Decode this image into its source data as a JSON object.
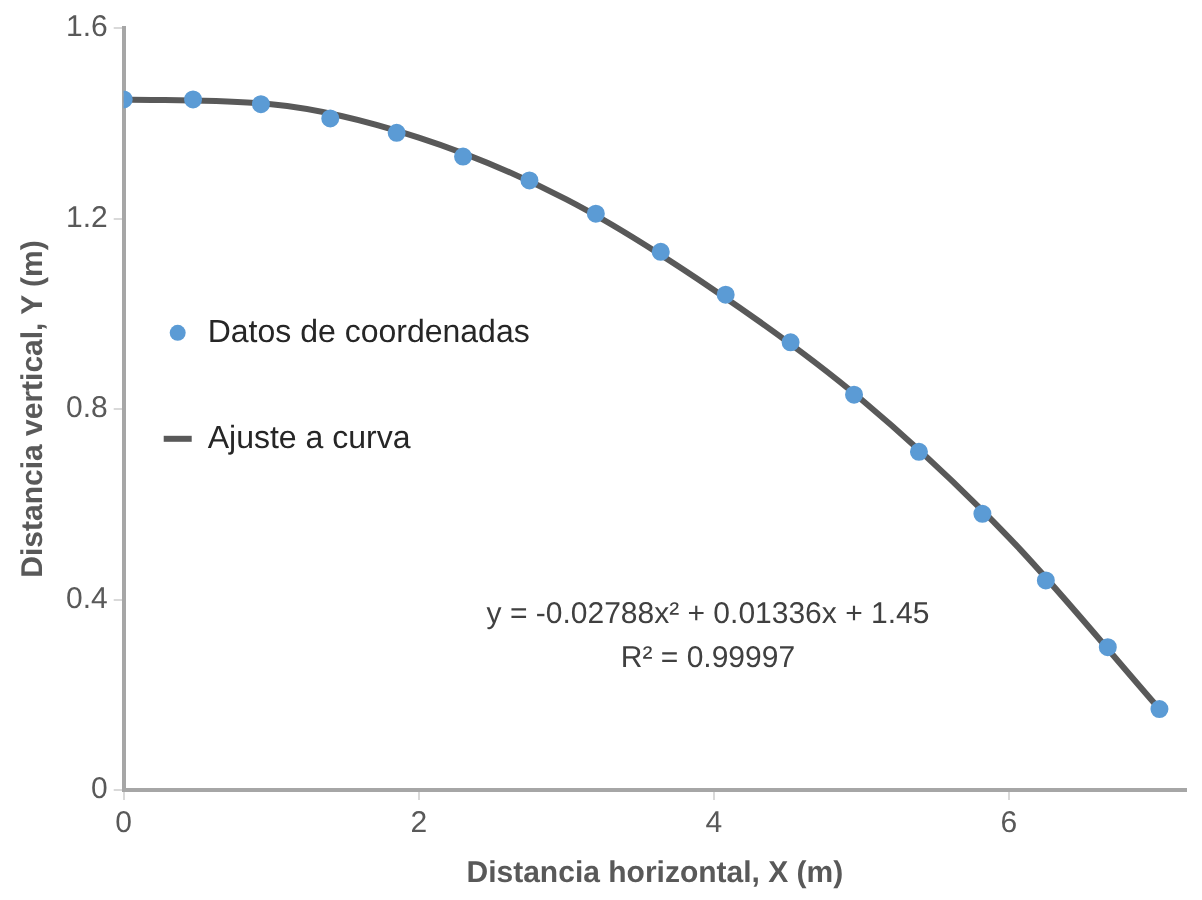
{
  "chart_data": {
    "type": "scatter",
    "xlabel": "Distancia horizontal, X (m)",
    "ylabel": "Distancia vertical, Y (m)",
    "xlim": [
      0,
      7.2
    ],
    "xticks": [
      0,
      2,
      4,
      6
    ],
    "ylim": [
      0,
      1.6
    ],
    "yticks": [
      0,
      0.4,
      0.8,
      1.2,
      1.6
    ],
    "grid": false,
    "legend": "left",
    "marker": "circle",
    "x": [
      0,
      0.47,
      0.93,
      1.4,
      1.85,
      2.3,
      2.75,
      3.2,
      3.64,
      4.08,
      4.52,
      4.95,
      5.39,
      5.82,
      6.25,
      6.67,
      7.02
    ],
    "series": [
      {
        "name": "Datos de coordenadas",
        "color": "#5b9bd5",
        "values": [
          1.45,
          1.45,
          1.44,
          1.41,
          1.38,
          1.33,
          1.28,
          1.21,
          1.13,
          1.04,
          0.94,
          0.83,
          0.71,
          0.58,
          0.44,
          0.3,
          0.17
        ]
      },
      {
        "name": "Ajuste a curva",
        "type": "line",
        "color": "#595959",
        "marker": "none",
        "x": [
          0,
          1,
          2,
          3,
          4,
          5,
          6,
          7.02
        ],
        "values": [
          1.45,
          1.44,
          1.37,
          1.24,
          1.05,
          0.82,
          0.53,
          0.17
        ]
      }
    ],
    "annotations": [
      "y = -0.02788x² + 0.01336x + 1.45",
      "R² = 0.99997"
    ]
  }
}
